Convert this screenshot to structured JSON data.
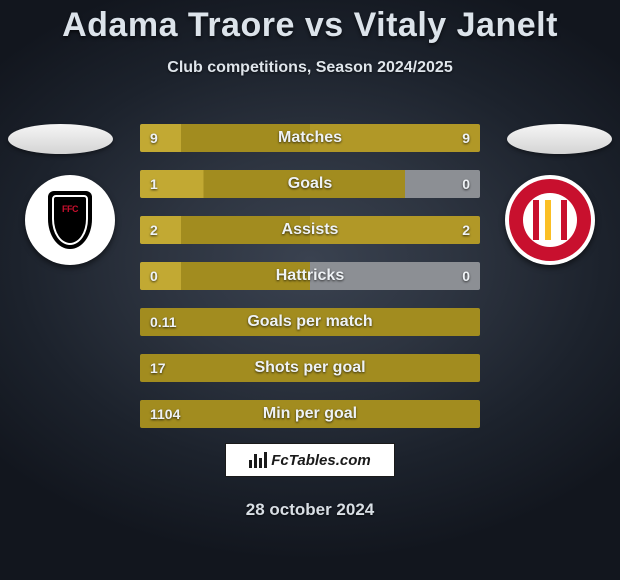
{
  "title": "Adama Traore vs Vitaly Janelt",
  "subtitle": "Club competitions, Season 2024/2025",
  "date": "28 october 2024",
  "branding": "FcTables.com",
  "colors": {
    "bar_left": "#a28c1f",
    "bar_right": "#b19827",
    "bar_highlight_left": "#c2a933",
    "bar_empty": "#8c8f94",
    "text": "#eef2f5",
    "background_center": "#3a4250",
    "background_edge": "#12161e"
  },
  "clubs": {
    "left": {
      "name": "Fulham",
      "badge_bg": "#ffffff",
      "primary": "#000000",
      "accent": "#c8102e"
    },
    "right": {
      "name": "Brentford",
      "badge_bg": "#ffffff",
      "primary": "#c8102e",
      "accent": "#fbbf24"
    }
  },
  "bars": [
    {
      "label": "Matches",
      "left_val": "9",
      "right_val": "9",
      "left_pct": 50,
      "right_pct": 50,
      "right_color": "#b19827"
    },
    {
      "label": "Goals",
      "left_val": "1",
      "right_val": "0",
      "left_pct": 78,
      "right_pct": 22,
      "right_color": "#8c8f94"
    },
    {
      "label": "Assists",
      "left_val": "2",
      "right_val": "2",
      "left_pct": 50,
      "right_pct": 50,
      "right_color": "#b19827"
    },
    {
      "label": "Hattricks",
      "left_val": "0",
      "right_val": "0",
      "left_pct": 50,
      "right_pct": 50,
      "right_color": "#8c8f94"
    },
    {
      "label": "Goals per match",
      "left_val": "0.11",
      "right_val": "",
      "left_pct": 100,
      "right_pct": 0,
      "right_color": "#b19827"
    },
    {
      "label": "Shots per goal",
      "left_val": "17",
      "right_val": "",
      "left_pct": 100,
      "right_pct": 0,
      "right_color": "#b19827"
    },
    {
      "label": "Min per goal",
      "left_val": "1104",
      "right_val": "",
      "left_pct": 100,
      "right_pct": 0,
      "right_color": "#b19827"
    }
  ]
}
